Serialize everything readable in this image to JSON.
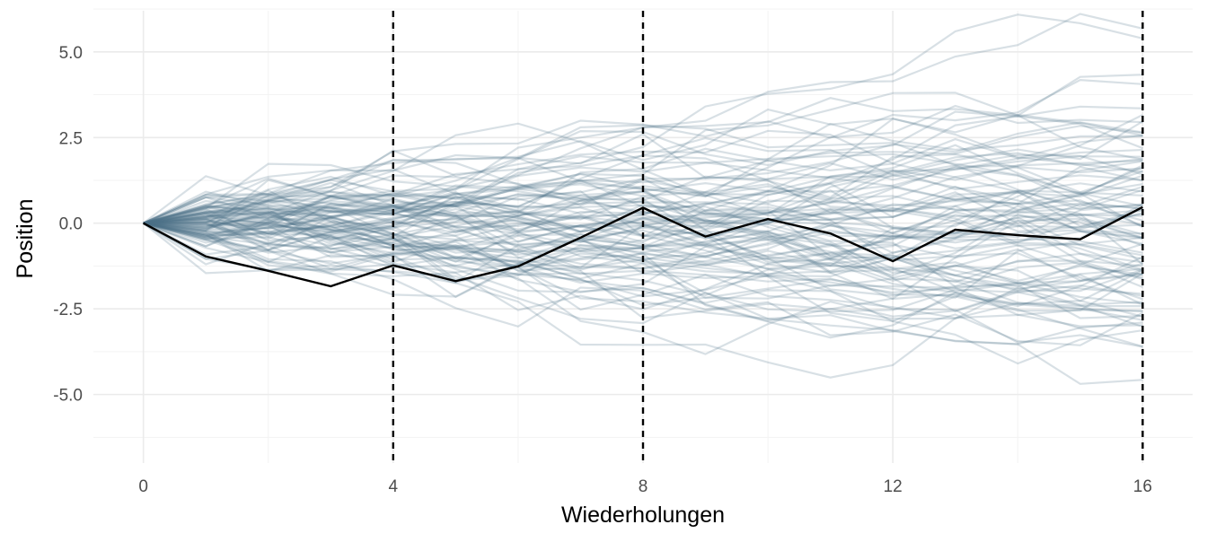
{
  "chart_data": {
    "type": "line",
    "title": "",
    "xlabel": "Wiederholungen",
    "ylabel": "Position",
    "xlim": [
      -0.8,
      16.8
    ],
    "ylim": [
      -7.0,
      6.2
    ],
    "x_ticks": [
      0,
      4,
      8,
      12,
      16
    ],
    "x_tick_labels": [
      "0",
      "4",
      "8",
      "12",
      "16"
    ],
    "x_minor_ticks": [
      2,
      6,
      10,
      14
    ],
    "y_ticks": [
      5.0,
      2.5,
      0.0,
      -2.5,
      -5.0
    ],
    "y_tick_labels": [
      "5.0",
      "2.5",
      "0.0",
      "-2.5",
      "-5.0"
    ],
    "y_minor_ticks": [
      6.25,
      3.75,
      1.25,
      -1.25,
      -3.75,
      -6.25
    ],
    "vlines": [
      4,
      8,
      16
    ],
    "background_series_count": 100,
    "background_step_sd": 0.5,
    "x": [
      0,
      1,
      2,
      3,
      4,
      5,
      6,
      7,
      8,
      9,
      10,
      11,
      12,
      13,
      14,
      15,
      16
    ],
    "highlight_series": [
      0.0,
      -0.97,
      -1.39,
      -1.84,
      -1.23,
      -1.69,
      -1.26,
      -0.42,
      0.45,
      -0.39,
      0.12,
      -0.3,
      -1.11,
      -0.19,
      -0.35,
      -0.47,
      0.47
    ],
    "grid": true,
    "legend": "none",
    "colors": {
      "background_series": "#4f7088",
      "highlight_series": "#000000",
      "vline": "#000000",
      "grid_major": "#ebebeb",
      "grid_minor": "#f3f3f3"
    }
  }
}
